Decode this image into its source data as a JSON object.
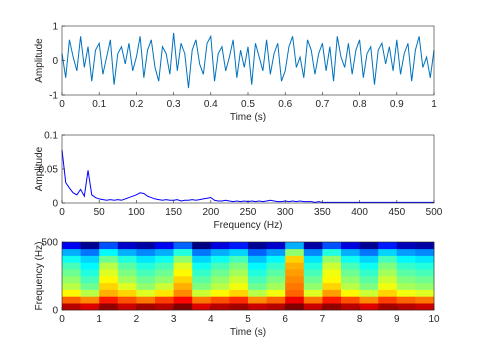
{
  "chart_data": [
    {
      "type": "line",
      "xlabel": "Time (s)",
      "ylabel": "Amplitude",
      "color": "#0072bd",
      "xlim": [
        0,
        1
      ],
      "ylim": [
        -1,
        1
      ],
      "xticks": [
        0,
        0.1,
        0.2,
        0.3,
        0.4,
        0.5,
        0.6,
        0.7,
        0.8,
        0.9,
        1
      ],
      "yticks": [
        -1,
        0,
        1
      ],
      "x": [
        0,
        0.01,
        0.02,
        0.03,
        0.04,
        0.05,
        0.06,
        0.07,
        0.08,
        0.09,
        0.1,
        0.11,
        0.12,
        0.13,
        0.14,
        0.15,
        0.16,
        0.17,
        0.18,
        0.19,
        0.2,
        0.21,
        0.22,
        0.23,
        0.24,
        0.25,
        0.26,
        0.27,
        0.28,
        0.29,
        0.3,
        0.31,
        0.32,
        0.33,
        0.34,
        0.35,
        0.36,
        0.37,
        0.38,
        0.39,
        0.4,
        0.41,
        0.42,
        0.43,
        0.44,
        0.45,
        0.46,
        0.47,
        0.48,
        0.49,
        0.5,
        0.51,
        0.52,
        0.53,
        0.54,
        0.55,
        0.56,
        0.57,
        0.58,
        0.59,
        0.6,
        0.61,
        0.62,
        0.63,
        0.64,
        0.65,
        0.66,
        0.67,
        0.68,
        0.69,
        0.7,
        0.71,
        0.72,
        0.73,
        0.74,
        0.75,
        0.76,
        0.77,
        0.78,
        0.79,
        0.8,
        0.81,
        0.82,
        0.83,
        0.84,
        0.85,
        0.86,
        0.87,
        0.88,
        0.89,
        0.9,
        0.91,
        0.92,
        0.93,
        0.94,
        0.95,
        0.96,
        0.97,
        0.98,
        0.99,
        1
      ],
      "values": [
        0.2,
        -0.5,
        0.6,
        0.1,
        -0.3,
        0.7,
        -0.2,
        0.4,
        -0.6,
        0.3,
        0.5,
        -0.4,
        0.1,
        0.6,
        -0.7,
        0.2,
        0.4,
        -0.1,
        0.5,
        -0.3,
        0.1,
        0.7,
        -0.5,
        0.3,
        0.6,
        -0.2,
        -0.6,
        0.4,
        0.2,
        -0.4,
        0.8,
        -0.3,
        0.5,
        0.2,
        -0.8,
        0.3,
        0.6,
        -0.1,
        -0.4,
        0.5,
        0.7,
        -0.6,
        0.2,
        0.4,
        -0.3,
        0.1,
        0.6,
        -0.5,
        0.3,
        -0.2,
        0.4,
        -0.7,
        0.5,
        0.1,
        -0.3,
        0.6,
        -0.4,
        0.2,
        0.5,
        -0.6,
        -0.3,
        0.4,
        0.7,
        -0.2,
        0.1,
        -0.5,
        0.6,
        0.3,
        -0.4,
        0.2,
        0.5,
        -0.3,
        0.4,
        -0.6,
        0.7,
        0.1,
        -0.2,
        0.5,
        -0.4,
        0.3,
        0.6,
        -0.5,
        0.2,
        0.4,
        -0.7,
        0.3,
        0.5,
        -0.1,
        0.4,
        -0.3,
        0.6,
        -0.4,
        0.2,
        0.5,
        -0.6,
        0.3,
        0.7,
        -0.2,
        0.1,
        -0.5,
        0.3
      ]
    },
    {
      "type": "line",
      "xlabel": "Frequency (Hz)",
      "ylabel": "Amplitude",
      "color": "#0000ff",
      "xlim": [
        0,
        500
      ],
      "ylim": [
        0,
        0.1
      ],
      "xticks": [
        0,
        50,
        100,
        150,
        200,
        250,
        300,
        350,
        400,
        450,
        500
      ],
      "yticks": [
        0,
        0.05,
        0.1
      ],
      "x": [
        0,
        5,
        10,
        15,
        20,
        25,
        30,
        35,
        40,
        45,
        50,
        55,
        60,
        65,
        70,
        75,
        80,
        85,
        90,
        95,
        100,
        105,
        110,
        115,
        120,
        125,
        130,
        135,
        140,
        145,
        150,
        155,
        160,
        165,
        170,
        175,
        180,
        185,
        190,
        195,
        200,
        205,
        210,
        215,
        220,
        225,
        230,
        235,
        240,
        245,
        250,
        255,
        260,
        265,
        270,
        275,
        280,
        285,
        290,
        295,
        300,
        305,
        310,
        315,
        320,
        325,
        330,
        335,
        340,
        345,
        350,
        355,
        360,
        365,
        370,
        375,
        380,
        385,
        390,
        395,
        400,
        405,
        410,
        415,
        420,
        425,
        430,
        435,
        440,
        445,
        450,
        455,
        460,
        465,
        470,
        475,
        480,
        485,
        490,
        495,
        500
      ],
      "values": [
        0.078,
        0.03,
        0.022,
        0.015,
        0.012,
        0.02,
        0.01,
        0.048,
        0.012,
        0.008,
        0.006,
        0.005,
        0.004,
        0.005,
        0.004,
        0.005,
        0.004,
        0.006,
        0.008,
        0.01,
        0.012,
        0.015,
        0.014,
        0.01,
        0.008,
        0.006,
        0.005,
        0.004,
        0.005,
        0.004,
        0.004,
        0.005,
        0.003,
        0.004,
        0.004,
        0.005,
        0.004,
        0.005,
        0.006,
        0.007,
        0.008,
        0.004,
        0.003,
        0.003,
        0.004,
        0.003,
        0.002,
        0.003,
        0.002,
        0.003,
        0.002,
        0.003,
        0.002,
        0.003,
        0.002,
        0.003,
        0.004,
        0.003,
        0.002,
        0.002,
        0.003,
        0.002,
        0.003,
        0.002,
        0.003,
        0.002,
        0.002,
        0.002,
        0.001,
        0.002,
        0.001,
        0.001,
        0.001,
        0.001,
        0.001,
        0.001,
        0.001,
        0.001,
        0.001,
        0.001,
        0.001,
        0.001,
        0.001,
        0.001,
        0.001,
        0.001,
        0.001,
        0.001,
        0.001,
        0.001,
        0.001,
        0.001,
        0.001,
        0.001,
        0.001,
        0.001,
        0.001,
        0.001,
        0.001,
        0.001,
        0.001
      ]
    },
    {
      "type": "heatmap",
      "xlabel": "Time (s)",
      "ylabel": "Frequency (Hz)",
      "colormap": "jet",
      "xlim": [
        0,
        10
      ],
      "ylim": [
        0,
        500
      ],
      "xticks": [
        0,
        1,
        2,
        3,
        4,
        5,
        6,
        7,
        8,
        9,
        10
      ],
      "yticks": [
        0,
        500
      ],
      "x": [
        0.25,
        0.75,
        1.25,
        1.75,
        2.25,
        2.75,
        3.25,
        3.75,
        4.25,
        4.75,
        5.25,
        5.75,
        6.25,
        6.75,
        7.25,
        7.75,
        8.25,
        8.75,
        9.25,
        9.75
      ],
      "y": [
        25,
        75,
        125,
        175,
        225,
        275,
        325,
        375,
        425,
        475
      ],
      "z": [
        [
          0.95,
          0.93,
          0.97,
          0.94,
          0.96,
          0.95,
          0.98,
          0.93,
          0.95,
          0.96,
          0.94,
          0.95,
          0.98,
          0.94,
          0.97,
          0.95,
          0.93,
          0.96,
          0.95,
          0.94
        ],
        [
          0.86,
          0.84,
          0.9,
          0.87,
          0.85,
          0.88,
          0.91,
          0.85,
          0.87,
          0.89,
          0.84,
          0.86,
          0.92,
          0.85,
          0.9,
          0.87,
          0.84,
          0.88,
          0.86,
          0.85
        ],
        [
          0.78,
          0.74,
          0.82,
          0.8,
          0.76,
          0.79,
          0.84,
          0.75,
          0.78,
          0.8,
          0.74,
          0.77,
          0.86,
          0.76,
          0.83,
          0.78,
          0.75,
          0.8,
          0.77,
          0.76
        ],
        [
          0.74,
          0.7,
          0.8,
          0.76,
          0.72,
          0.75,
          0.82,
          0.71,
          0.74,
          0.77,
          0.7,
          0.73,
          0.85,
          0.72,
          0.8,
          0.74,
          0.71,
          0.77,
          0.73,
          0.72
        ],
        [
          0.72,
          0.68,
          0.78,
          0.73,
          0.7,
          0.72,
          0.8,
          0.69,
          0.72,
          0.75,
          0.68,
          0.71,
          0.84,
          0.7,
          0.78,
          0.72,
          0.69,
          0.75,
          0.71,
          0.7
        ],
        [
          0.7,
          0.66,
          0.76,
          0.71,
          0.68,
          0.7,
          0.78,
          0.67,
          0.7,
          0.73,
          0.66,
          0.69,
          0.83,
          0.68,
          0.77,
          0.7,
          0.67,
          0.73,
          0.69,
          0.68
        ],
        [
          0.68,
          0.64,
          0.74,
          0.69,
          0.66,
          0.68,
          0.76,
          0.65,
          0.68,
          0.71,
          0.64,
          0.67,
          0.82,
          0.66,
          0.75,
          0.68,
          0.65,
          0.71,
          0.67,
          0.66
        ],
        [
          0.65,
          0.62,
          0.7,
          0.66,
          0.63,
          0.65,
          0.72,
          0.62,
          0.65,
          0.68,
          0.61,
          0.64,
          0.8,
          0.63,
          0.72,
          0.65,
          0.62,
          0.68,
          0.64,
          0.63
        ],
        [
          0.6,
          0.57,
          0.64,
          0.6,
          0.58,
          0.6,
          0.66,
          0.57,
          0.6,
          0.62,
          0.56,
          0.59,
          0.72,
          0.58,
          0.66,
          0.6,
          0.57,
          0.62,
          0.59,
          0.58
        ],
        [
          0.5,
          0.45,
          0.55,
          0.48,
          0.46,
          0.5,
          0.56,
          0.44,
          0.49,
          0.52,
          0.45,
          0.48,
          0.6,
          0.46,
          0.55,
          0.49,
          0.45,
          0.52,
          0.47,
          0.46
        ]
      ]
    }
  ]
}
